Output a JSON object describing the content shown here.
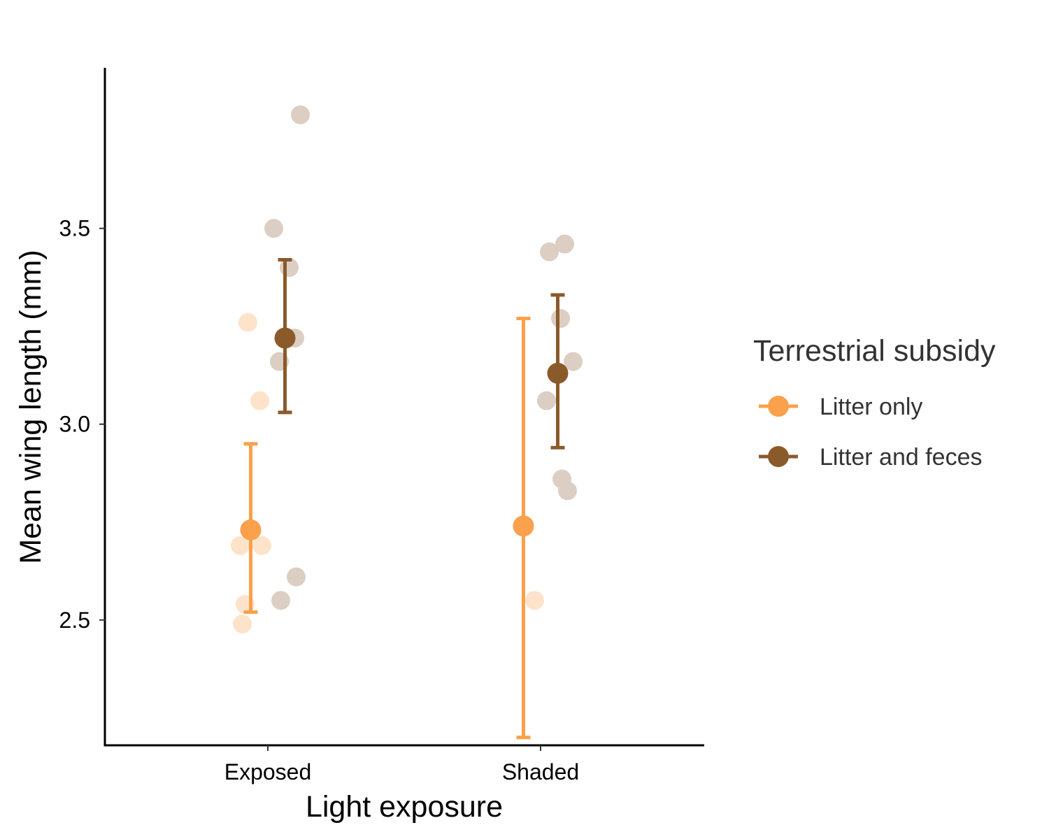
{
  "chart_data": {
    "type": "scatter",
    "title": "",
    "xlabel": "Light exposure",
    "ylabel": "Mean wing length (mm)",
    "categories": [
      "Exposed",
      "Shaded"
    ],
    "ylim": [
      2.18,
      3.91
    ],
    "yticks": [
      2.5,
      3.0,
      3.5
    ],
    "ytick_labels": [
      "2.5",
      "3.0",
      "3.5"
    ],
    "grid": false,
    "legend": {
      "title": "Terrestrial subsidy",
      "placement": "right"
    },
    "series": [
      {
        "name": "Litter only",
        "color": "#FBA04B",
        "mean": [
          2.73,
          2.74
        ],
        "error_low": [
          2.52,
          2.2
        ],
        "error_high": [
          2.95,
          3.27
        ],
        "raw_points": [
          {
            "category": "Exposed",
            "values": [
              2.49,
              2.54,
              2.69,
              2.69,
              3.06,
              3.26
            ]
          },
          {
            "category": "Shaded",
            "values": [
              2.55
            ]
          }
        ]
      },
      {
        "name": "Litter and feces",
        "color": "#8B5A2B",
        "mean": [
          3.22,
          3.13
        ],
        "error_low": [
          3.03,
          2.94
        ],
        "error_high": [
          3.42,
          3.33
        ],
        "raw_points": [
          {
            "category": "Exposed",
            "values": [
              2.55,
              2.61,
              3.16,
              3.22,
              3.4,
              3.5,
              3.79
            ]
          },
          {
            "category": "Shaded",
            "values": [
              2.83,
              2.86,
              3.06,
              3.16,
              3.27,
              3.44,
              3.46
            ]
          }
        ]
      }
    ]
  }
}
